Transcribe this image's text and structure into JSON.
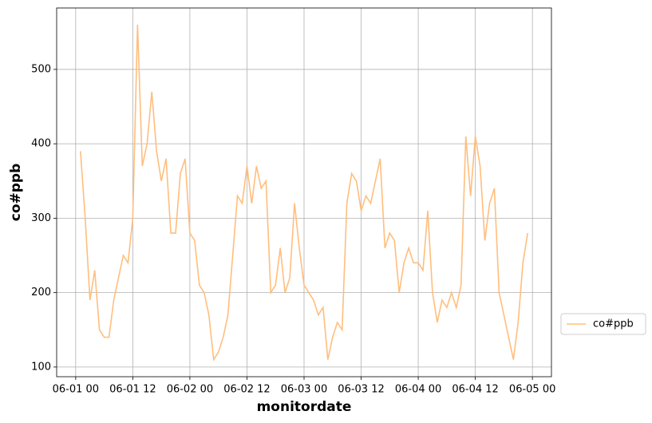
{
  "chart_data": {
    "type": "line",
    "xlabel": "monitordate",
    "ylabel": "co#ppb",
    "x": [
      "06-01 01",
      "06-01 02",
      "06-01 03",
      "06-01 04",
      "06-01 05",
      "06-01 06",
      "06-01 07",
      "06-01 08",
      "06-01 09",
      "06-01 10",
      "06-01 11",
      "06-01 12",
      "06-01 13",
      "06-01 14",
      "06-01 15",
      "06-01 16",
      "06-01 17",
      "06-01 18",
      "06-01 19",
      "06-01 20",
      "06-01 21",
      "06-01 22",
      "06-01 23",
      "06-02 00",
      "06-02 01",
      "06-02 02",
      "06-02 03",
      "06-02 04",
      "06-02 05",
      "06-02 06",
      "06-02 07",
      "06-02 08",
      "06-02 09",
      "06-02 10",
      "06-02 11",
      "06-02 12",
      "06-02 13",
      "06-02 14",
      "06-02 15",
      "06-02 16",
      "06-02 17",
      "06-02 18",
      "06-02 19",
      "06-02 20",
      "06-02 21",
      "06-02 22",
      "06-02 23",
      "06-03 00",
      "06-03 01",
      "06-03 02",
      "06-03 03",
      "06-03 04",
      "06-03 05",
      "06-03 06",
      "06-03 07",
      "06-03 08",
      "06-03 09",
      "06-03 10",
      "06-03 11",
      "06-03 12",
      "06-03 13",
      "06-03 14",
      "06-03 15",
      "06-03 16",
      "06-03 17",
      "06-03 18",
      "06-03 19",
      "06-03 20",
      "06-03 21",
      "06-03 22",
      "06-03 23",
      "06-04 00",
      "06-04 01",
      "06-04 02",
      "06-04 03",
      "06-04 04",
      "06-04 05",
      "06-04 06",
      "06-04 07",
      "06-04 08",
      "06-04 09",
      "06-04 10",
      "06-04 11",
      "06-04 12",
      "06-04 13",
      "06-04 14",
      "06-04 15",
      "06-04 16",
      "06-04 17",
      "06-04 18",
      "06-04 19",
      "06-04 20",
      "06-04 21",
      "06-04 22",
      "06-04 23"
    ],
    "series": [
      {
        "name": "co#ppb",
        "color": "#ffbe7d",
        "values": [
          390,
          300,
          190,
          230,
          150,
          140,
          140,
          190,
          220,
          250,
          240,
          300,
          560,
          370,
          400,
          470,
          390,
          350,
          380,
          280,
          280,
          360,
          380,
          280,
          270,
          210,
          200,
          170,
          110,
          120,
          140,
          170,
          250,
          330,
          320,
          370,
          320,
          370,
          340,
          350,
          200,
          210,
          260,
          200,
          220,
          320,
          260,
          210,
          200,
          190,
          170,
          180,
          110,
          140,
          160,
          150,
          320,
          360,
          350,
          310,
          330,
          320,
          350,
          380,
          260,
          280,
          270,
          200,
          240,
          260,
          240,
          240,
          230,
          310,
          200,
          160,
          190,
          180,
          200,
          180,
          210,
          410,
          330,
          410,
          370,
          270,
          320,
          340,
          200,
          170,
          140,
          110,
          160,
          240,
          280
        ]
      }
    ],
    "xlim": [
      "05-31 20",
      "06-05 04"
    ],
    "xticks": [
      "06-01 00",
      "06-01 12",
      "06-02 00",
      "06-02 12",
      "06-03 00",
      "06-03 12",
      "06-04 00",
      "06-04 12",
      "06-05 00"
    ],
    "ylim": [
      87,
      582.5
    ],
    "yticks": [
      100,
      200,
      300,
      400,
      500
    ],
    "grid": true,
    "legend": "right"
  }
}
